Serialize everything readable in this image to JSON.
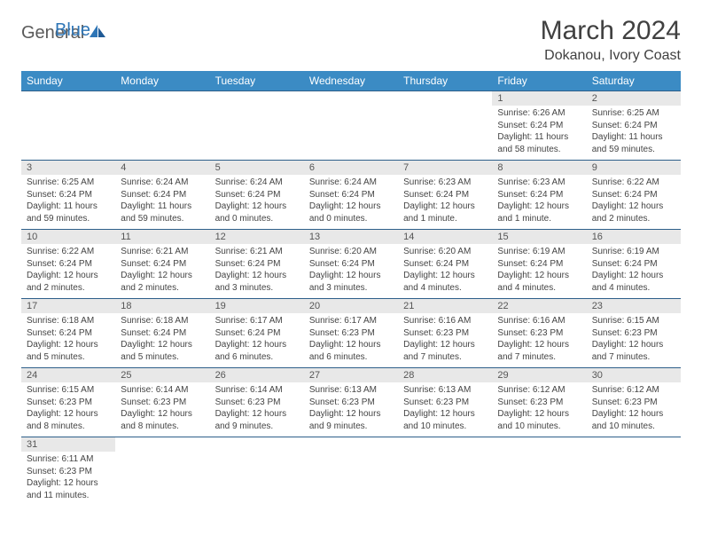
{
  "logo": {
    "part1": "General",
    "part2": "Blue"
  },
  "title": "March 2024",
  "location": "Dokanou, Ivory Coast",
  "colors": {
    "header_bg": "#3b8bc4",
    "header_text": "#ffffff",
    "daynum_bg": "#e8e8e8",
    "border": "#2e5f8a",
    "logo_gray": "#5a5a5a",
    "logo_blue": "#2e75b6"
  },
  "weekdays": [
    "Sunday",
    "Monday",
    "Tuesday",
    "Wednesday",
    "Thursday",
    "Friday",
    "Saturday"
  ],
  "weeks": [
    [
      null,
      null,
      null,
      null,
      null,
      {
        "d": "1",
        "sr": "6:26 AM",
        "ss": "6:24 PM",
        "dl": "11 hours and 58 minutes."
      },
      {
        "d": "2",
        "sr": "6:25 AM",
        "ss": "6:24 PM",
        "dl": "11 hours and 59 minutes."
      }
    ],
    [
      {
        "d": "3",
        "sr": "6:25 AM",
        "ss": "6:24 PM",
        "dl": "11 hours and 59 minutes."
      },
      {
        "d": "4",
        "sr": "6:24 AM",
        "ss": "6:24 PM",
        "dl": "11 hours and 59 minutes."
      },
      {
        "d": "5",
        "sr": "6:24 AM",
        "ss": "6:24 PM",
        "dl": "12 hours and 0 minutes."
      },
      {
        "d": "6",
        "sr": "6:24 AM",
        "ss": "6:24 PM",
        "dl": "12 hours and 0 minutes."
      },
      {
        "d": "7",
        "sr": "6:23 AM",
        "ss": "6:24 PM",
        "dl": "12 hours and 1 minute."
      },
      {
        "d": "8",
        "sr": "6:23 AM",
        "ss": "6:24 PM",
        "dl": "12 hours and 1 minute."
      },
      {
        "d": "9",
        "sr": "6:22 AM",
        "ss": "6:24 PM",
        "dl": "12 hours and 2 minutes."
      }
    ],
    [
      {
        "d": "10",
        "sr": "6:22 AM",
        "ss": "6:24 PM",
        "dl": "12 hours and 2 minutes."
      },
      {
        "d": "11",
        "sr": "6:21 AM",
        "ss": "6:24 PM",
        "dl": "12 hours and 2 minutes."
      },
      {
        "d": "12",
        "sr": "6:21 AM",
        "ss": "6:24 PM",
        "dl": "12 hours and 3 minutes."
      },
      {
        "d": "13",
        "sr": "6:20 AM",
        "ss": "6:24 PM",
        "dl": "12 hours and 3 minutes."
      },
      {
        "d": "14",
        "sr": "6:20 AM",
        "ss": "6:24 PM",
        "dl": "12 hours and 4 minutes."
      },
      {
        "d": "15",
        "sr": "6:19 AM",
        "ss": "6:24 PM",
        "dl": "12 hours and 4 minutes."
      },
      {
        "d": "16",
        "sr": "6:19 AM",
        "ss": "6:24 PM",
        "dl": "12 hours and 4 minutes."
      }
    ],
    [
      {
        "d": "17",
        "sr": "6:18 AM",
        "ss": "6:24 PM",
        "dl": "12 hours and 5 minutes."
      },
      {
        "d": "18",
        "sr": "6:18 AM",
        "ss": "6:24 PM",
        "dl": "12 hours and 5 minutes."
      },
      {
        "d": "19",
        "sr": "6:17 AM",
        "ss": "6:24 PM",
        "dl": "12 hours and 6 minutes."
      },
      {
        "d": "20",
        "sr": "6:17 AM",
        "ss": "6:23 PM",
        "dl": "12 hours and 6 minutes."
      },
      {
        "d": "21",
        "sr": "6:16 AM",
        "ss": "6:23 PM",
        "dl": "12 hours and 7 minutes."
      },
      {
        "d": "22",
        "sr": "6:16 AM",
        "ss": "6:23 PM",
        "dl": "12 hours and 7 minutes."
      },
      {
        "d": "23",
        "sr": "6:15 AM",
        "ss": "6:23 PM",
        "dl": "12 hours and 7 minutes."
      }
    ],
    [
      {
        "d": "24",
        "sr": "6:15 AM",
        "ss": "6:23 PM",
        "dl": "12 hours and 8 minutes."
      },
      {
        "d": "25",
        "sr": "6:14 AM",
        "ss": "6:23 PM",
        "dl": "12 hours and 8 minutes."
      },
      {
        "d": "26",
        "sr": "6:14 AM",
        "ss": "6:23 PM",
        "dl": "12 hours and 9 minutes."
      },
      {
        "d": "27",
        "sr": "6:13 AM",
        "ss": "6:23 PM",
        "dl": "12 hours and 9 minutes."
      },
      {
        "d": "28",
        "sr": "6:13 AM",
        "ss": "6:23 PM",
        "dl": "12 hours and 10 minutes."
      },
      {
        "d": "29",
        "sr": "6:12 AM",
        "ss": "6:23 PM",
        "dl": "12 hours and 10 minutes."
      },
      {
        "d": "30",
        "sr": "6:12 AM",
        "ss": "6:23 PM",
        "dl": "12 hours and 10 minutes."
      }
    ],
    [
      {
        "d": "31",
        "sr": "6:11 AM",
        "ss": "6:23 PM",
        "dl": "12 hours and 11 minutes."
      },
      null,
      null,
      null,
      null,
      null,
      null
    ]
  ],
  "labels": {
    "sunrise": "Sunrise:",
    "sunset": "Sunset:",
    "daylight": "Daylight:"
  }
}
